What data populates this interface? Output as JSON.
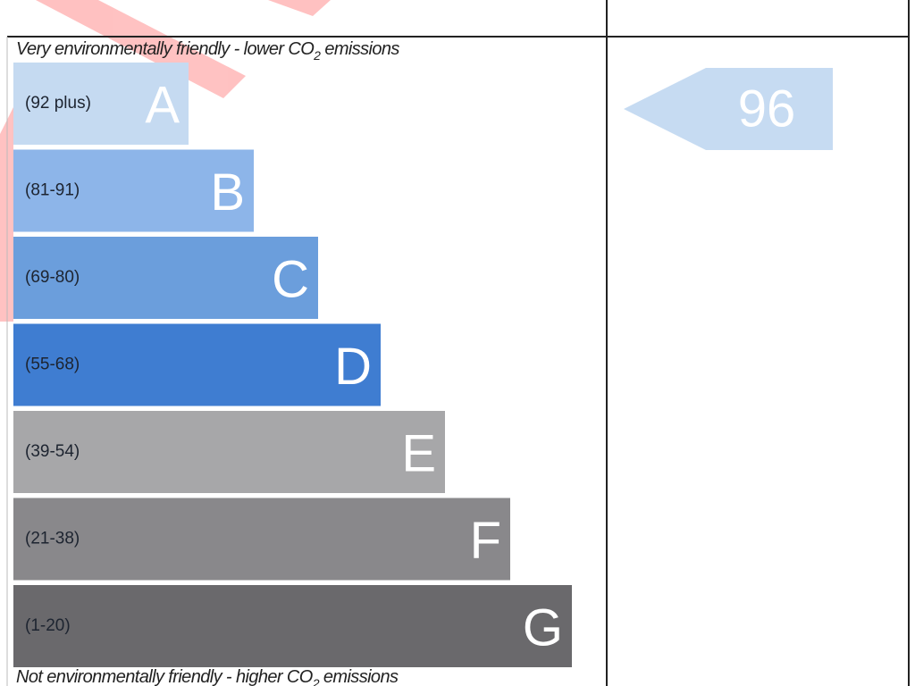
{
  "top_note": {
    "before": "Very environmentally friendly - lower CO",
    "sub": "2",
    "after": " emissions"
  },
  "bottom_note": {
    "before": "Not environmentally friendly - higher CO",
    "sub": "2",
    "after": " emissions"
  },
  "bands": [
    {
      "range": "(92 plus)",
      "letter": "A",
      "color": "#c5daf1"
    },
    {
      "range": "(81-91)",
      "letter": "B",
      "color": "#8db5e9"
    },
    {
      "range": "(69-80)",
      "letter": "C",
      "color": "#6b9edc"
    },
    {
      "range": "(55-68)",
      "letter": "D",
      "color": "#3f7dd1"
    },
    {
      "range": "(39-54)",
      "letter": "E",
      "color": "#a7a7a9"
    },
    {
      "range": "(21-38)",
      "letter": "F",
      "color": "#89888b"
    },
    {
      "range": "(1-20)",
      "letter": "G",
      "color": "#6a696c"
    }
  ],
  "current": {
    "value": "96",
    "color": "#c6dbf2"
  }
}
